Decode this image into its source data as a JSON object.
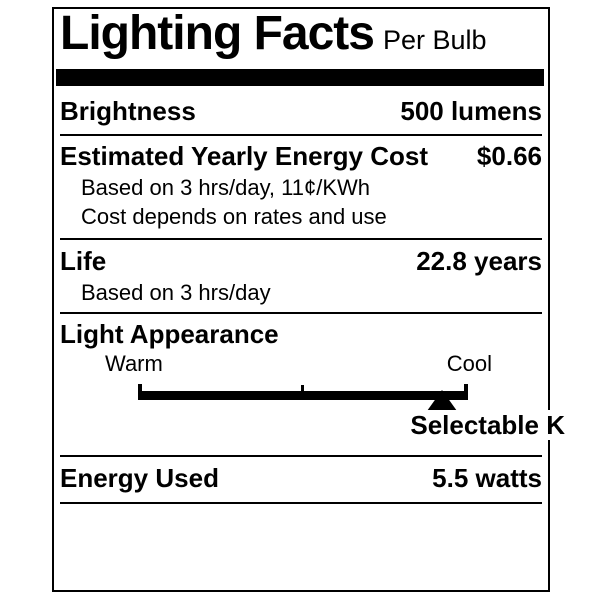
{
  "label": {
    "title": "Lighting Facts",
    "subtitle": "Per Bulb",
    "rows": {
      "brightness": {
        "label": "Brightness",
        "value": "500 lumens"
      },
      "energy_cost": {
        "label": "Estimated Yearly Energy Cost",
        "value": "$0.66",
        "notes": [
          "Based on 3 hrs/day, 11¢/KWh",
          "Cost depends on rates and use"
        ]
      },
      "life": {
        "label": "Life",
        "value": "22.8 years",
        "notes": [
          "Based on 3 hrs/day"
        ]
      },
      "light_appearance": {
        "label": "Light Appearance",
        "scale_left": "Warm",
        "scale_right": "Cool",
        "marker_note": "Selectable K",
        "marker_position_pct": 92
      },
      "energy_used": {
        "label": "Energy Used",
        "value": "5.5 watts"
      }
    },
    "colors": {
      "ink": "#000000",
      "background": "#ffffff"
    }
  }
}
